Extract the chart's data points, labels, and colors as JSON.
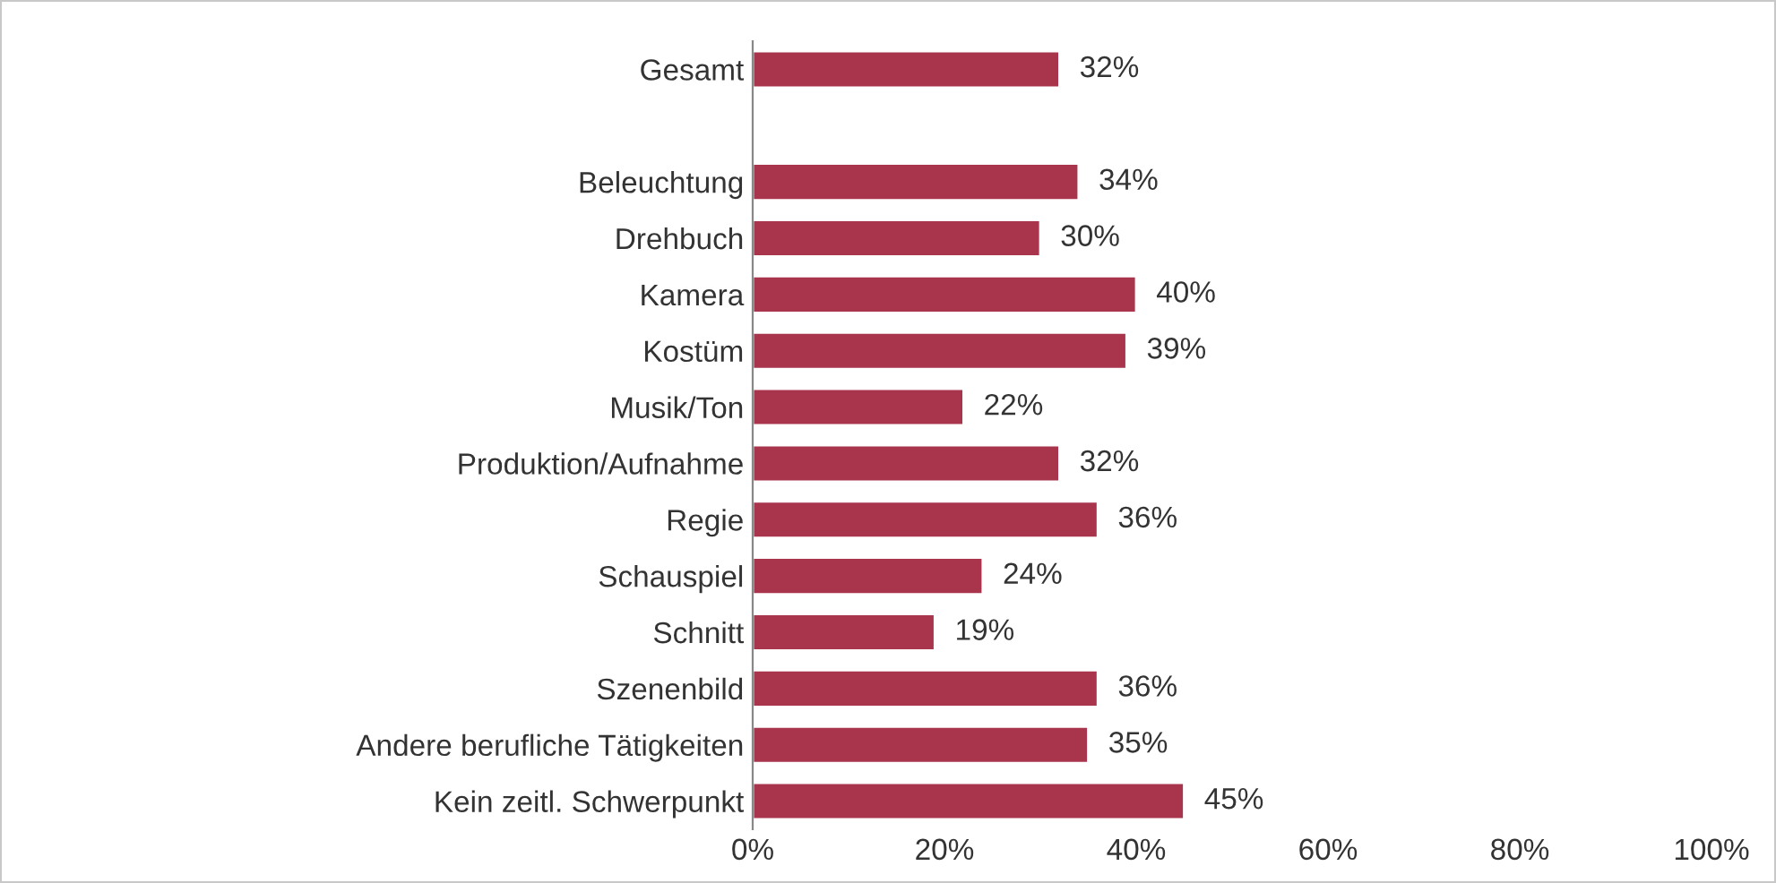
{
  "chart_data": {
    "type": "bar",
    "orientation": "horizontal",
    "categories": [
      "Gesamt",
      null,
      "Beleuchtung",
      "Drehbuch",
      "Kamera",
      "Kostüm",
      "Musik/Ton",
      "Produktion/Aufnahme",
      "Regie",
      "Schauspiel",
      "Schnitt",
      "Szenenbild",
      "Andere berufliche Tätigkeiten",
      "Kein zeitl. Schwerpunkt"
    ],
    "values": [
      32,
      null,
      34,
      30,
      40,
      39,
      22,
      32,
      36,
      24,
      19,
      36,
      35,
      45
    ],
    "value_labels": [
      "32%",
      null,
      "34%",
      "30%",
      "40%",
      "39%",
      "22%",
      "32%",
      "36%",
      "24%",
      "19%",
      "36%",
      "35%",
      "45%"
    ],
    "color": "#a8354b",
    "xlim": [
      0,
      100
    ],
    "xticks": [
      {
        "value": 0,
        "label": "0%"
      },
      {
        "value": 20,
        "label": "20%"
      },
      {
        "value": 40,
        "label": "40%"
      },
      {
        "value": 60,
        "label": "60%"
      },
      {
        "value": 80,
        "label": "80%"
      },
      {
        "value": 100,
        "label": "100%"
      }
    ],
    "grid": false,
    "legend": false
  }
}
